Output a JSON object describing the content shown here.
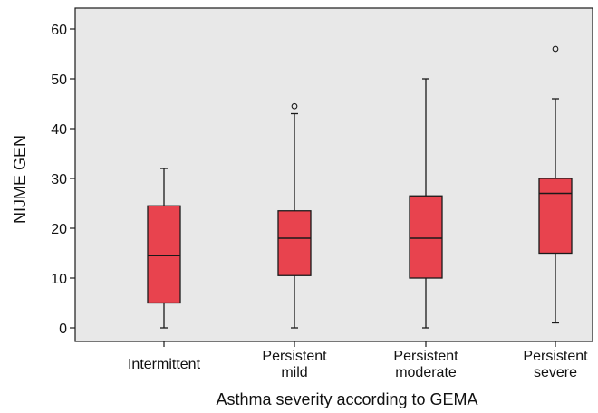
{
  "chart_data": {
    "type": "boxplot",
    "xlabel": "Asthma severity according to GEMA",
    "ylabel": "NIJME GEN",
    "ylim": [
      -3,
      64
    ],
    "yticks": [
      0,
      10,
      20,
      30,
      40,
      50,
      60
    ],
    "grid": false,
    "colors": {
      "box_fill": "#E8434E",
      "plot_bg": "#E8E8E8",
      "line": "#1a1a1a"
    },
    "categories": [
      {
        "lines": [
          "Intermittent"
        ]
      },
      {
        "lines": [
          "Persistent",
          "mild"
        ]
      },
      {
        "lines": [
          "Persistent",
          "moderate"
        ]
      },
      {
        "lines": [
          "Persistent",
          "severe"
        ]
      }
    ],
    "boxes": [
      {
        "min": 0,
        "q1": 5,
        "median": 14.5,
        "q3": 24.5,
        "max": 32,
        "outliers": []
      },
      {
        "min": 0,
        "q1": 10.5,
        "median": 18,
        "q3": 23.5,
        "max": 43,
        "outliers": [
          44.5
        ]
      },
      {
        "min": 0,
        "q1": 10,
        "median": 18,
        "q3": 26.5,
        "max": 50,
        "outliers": []
      },
      {
        "min": 1,
        "q1": 15,
        "median": 27,
        "q3": 30,
        "max": 46,
        "outliers": [
          56
        ]
      }
    ]
  }
}
